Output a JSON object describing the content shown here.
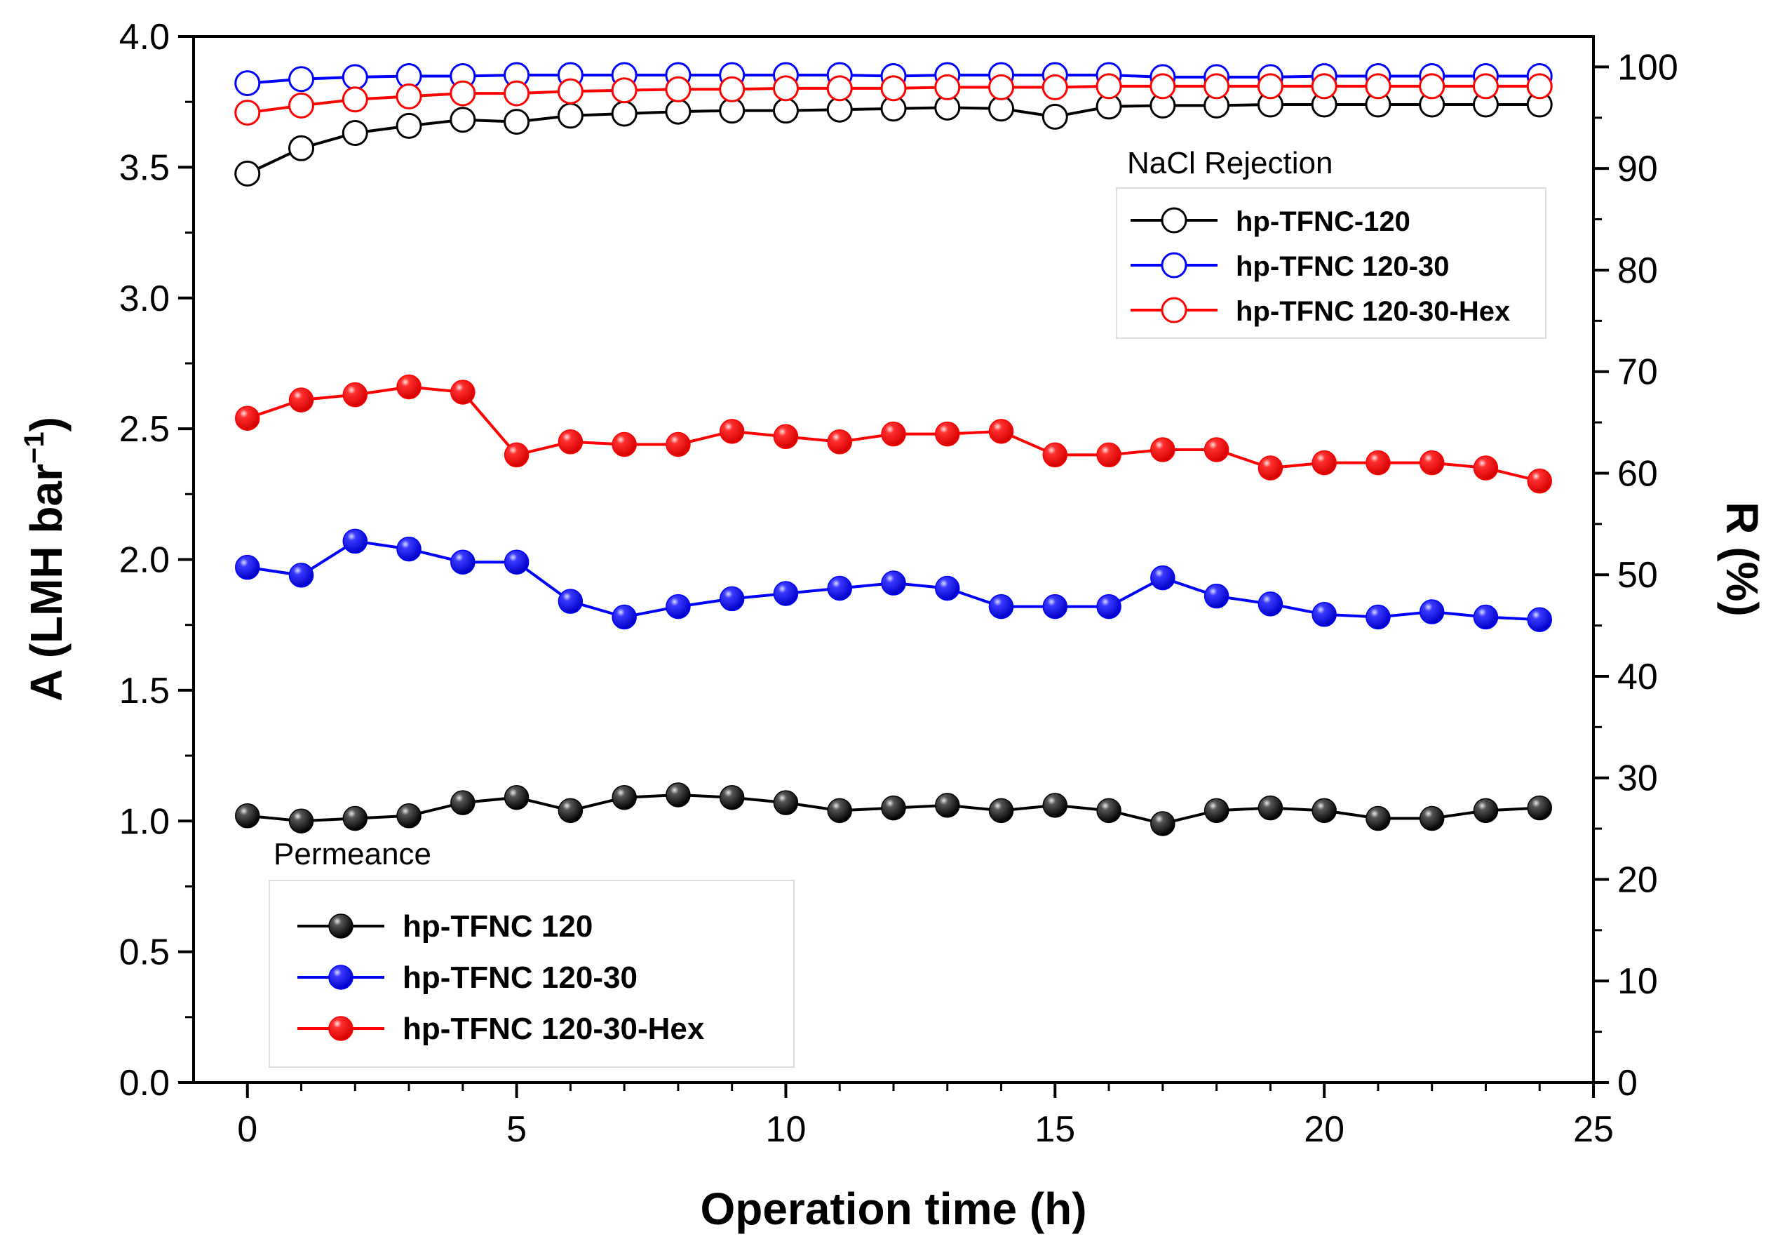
{
  "chart_data": {
    "type": "line",
    "xlabel": "Operation time (h)",
    "ylabel_left": "A (LMH bar",
    "ylabel_left_sup": "−1",
    "ylabel_left_close": ")",
    "ylabel_right": "R (%)",
    "xlim": [
      -1,
      25
    ],
    "ylim_left": [
      0,
      4.0
    ],
    "ylim_right": [
      0,
      103
    ],
    "x_ticks": [
      0,
      5,
      10,
      15,
      20,
      25
    ],
    "x_tick_labels": [
      "0",
      "5",
      "10",
      "15",
      "20",
      "25"
    ],
    "y_left_ticks": [
      0,
      0.5,
      1.0,
      1.5,
      2.0,
      2.5,
      3.0,
      3.5,
      4.0
    ],
    "y_left_tick_labels": [
      "0.0",
      "0.5",
      "1.0",
      "1.5",
      "2.0",
      "2.5",
      "3.0",
      "3.5",
      "4.0"
    ],
    "y_right_ticks": [
      0,
      10,
      20,
      30,
      40,
      50,
      60,
      70,
      80,
      90,
      100
    ],
    "y_right_tick_labels": [
      "0",
      "10",
      "20",
      "30",
      "40",
      "50",
      "60",
      "70",
      "80",
      "90",
      "100"
    ],
    "x": [
      0,
      1,
      2,
      3,
      4,
      5,
      6,
      7,
      8,
      9,
      10,
      11,
      12,
      13,
      14,
      15,
      16,
      17,
      18,
      19,
      20,
      21,
      22,
      23,
      24
    ],
    "permeance_title": "Permeance",
    "rejection_title": "NaCl Rejection",
    "permeance_series": [
      {
        "name": "hp-TFNC 120",
        "color": "#000000",
        "axis": "left",
        "marker": "filled",
        "values": [
          1.02,
          1.0,
          1.01,
          1.02,
          1.07,
          1.09,
          1.04,
          1.09,
          1.1,
          1.09,
          1.07,
          1.04,
          1.05,
          1.06,
          1.04,
          1.06,
          1.04,
          0.99,
          1.04,
          1.05,
          1.04,
          1.01,
          1.01,
          1.04,
          1.05
        ]
      },
      {
        "name": "hp-TFNC 120-30",
        "color": "#0000ff",
        "axis": "left",
        "marker": "filled",
        "values": [
          1.97,
          1.94,
          2.07,
          2.04,
          1.99,
          1.99,
          1.84,
          1.78,
          1.82,
          1.85,
          1.87,
          1.89,
          1.91,
          1.89,
          1.82,
          1.82,
          1.82,
          1.93,
          1.86,
          1.83,
          1.79,
          1.78,
          1.8,
          1.78,
          1.77
        ]
      },
      {
        "name": "hp-TFNC 120-30-Hex",
        "color": "#ff0000",
        "axis": "left",
        "marker": "filled",
        "values": [
          2.54,
          2.61,
          2.63,
          2.66,
          2.64,
          2.4,
          2.45,
          2.44,
          2.44,
          2.49,
          2.47,
          2.45,
          2.48,
          2.48,
          2.49,
          2.4,
          2.4,
          2.42,
          2.42,
          2.35,
          2.37,
          2.37,
          2.37,
          2.35,
          2.3
        ]
      }
    ],
    "rejection_series": [
      {
        "name": "hp-TFNC-120",
        "color": "#000000",
        "axis": "right",
        "marker": "open",
        "values": [
          89.5,
          92.0,
          93.5,
          94.2,
          94.8,
          94.6,
          95.2,
          95.4,
          95.6,
          95.7,
          95.7,
          95.8,
          95.9,
          96.0,
          95.9,
          95.1,
          96.1,
          96.2,
          96.2,
          96.3,
          96.3,
          96.3,
          96.3,
          96.3,
          96.3
        ]
      },
      {
        "name": "hp-TFNC 120-30",
        "color": "#0000ff",
        "axis": "right",
        "marker": "open",
        "values": [
          98.4,
          98.8,
          99.0,
          99.1,
          99.1,
          99.2,
          99.2,
          99.2,
          99.2,
          99.2,
          99.2,
          99.2,
          99.1,
          99.2,
          99.2,
          99.2,
          99.2,
          99.0,
          99.0,
          99.0,
          99.1,
          99.1,
          99.1,
          99.1,
          99.1
        ]
      },
      {
        "name": "hp-TFNC 120-30-Hex",
        "color": "#ff0000",
        "axis": "right",
        "marker": "open",
        "values": [
          95.5,
          96.2,
          96.8,
          97.1,
          97.4,
          97.4,
          97.6,
          97.7,
          97.8,
          97.8,
          97.9,
          97.9,
          97.9,
          98.0,
          98.0,
          98.0,
          98.1,
          98.1,
          98.1,
          98.1,
          98.1,
          98.1,
          98.1,
          98.1,
          98.1
        ]
      }
    ],
    "grid": false,
    "legend_positions": {
      "rejection": "top-right",
      "permeance": "bottom-left"
    }
  }
}
